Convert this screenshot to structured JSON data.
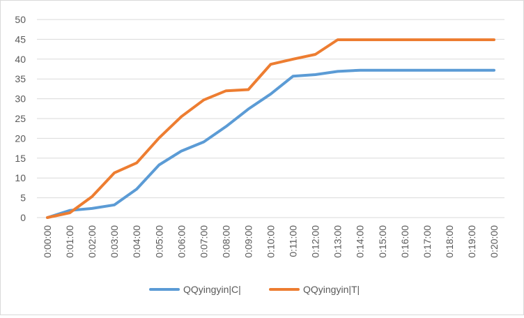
{
  "chart_data": {
    "type": "line",
    "title": "",
    "xlabel": "",
    "ylabel": "",
    "ylim": [
      0,
      50
    ],
    "y_ticks": [
      0,
      5,
      10,
      15,
      20,
      25,
      30,
      35,
      40,
      45,
      50
    ],
    "grid": "horizontal",
    "legend_position": "bottom",
    "x": [
      "0:00:00",
      "0:01:00",
      "0:02:00",
      "0:03:00",
      "0:04:00",
      "0:05:00",
      "0:06:00",
      "0:07:00",
      "0:08:00",
      "0:09:00",
      "0:10:00",
      "0:11:00",
      "0:12:00",
      "0:13:00",
      "0:14:00",
      "0:15:00",
      "0:16:00",
      "0:17:00",
      "0:18:00",
      "0:19:00",
      "0:20:00"
    ],
    "series": [
      {
        "name": "QQyingyin|C|",
        "color": "#5b9bd5",
        "values": [
          0,
          1.8,
          2.3,
          3.2,
          7.2,
          13.3,
          16.8,
          19.1,
          23,
          27.4,
          31.2,
          35.7,
          36.1,
          36.9,
          37.2,
          37.2,
          37.2,
          37.2,
          37.2,
          37.2,
          37.2
        ]
      },
      {
        "name": "QQyingyin|T|",
        "color": "#ed7d31",
        "values": [
          0,
          1.2,
          5.3,
          11.3,
          13.8,
          20.1,
          25.5,
          29.7,
          32,
          32.3,
          38.7,
          40,
          41.2,
          44.9,
          44.9,
          44.9,
          44.9,
          44.9,
          44.9,
          44.9,
          44.9
        ]
      }
    ]
  }
}
